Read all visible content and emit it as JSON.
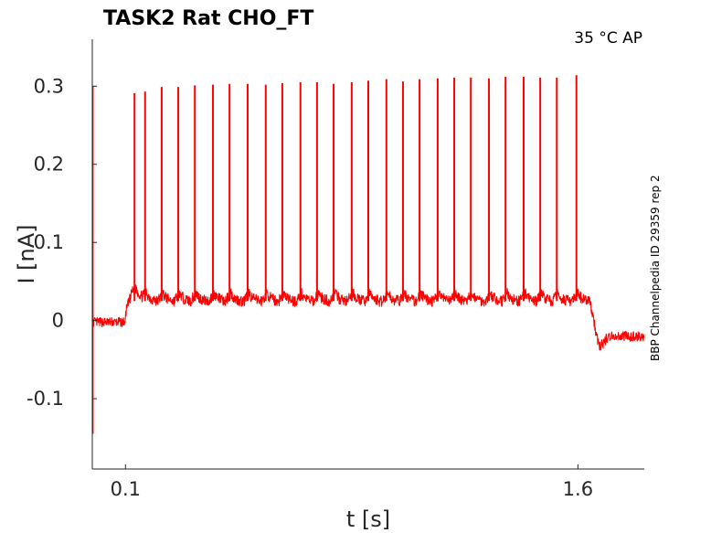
{
  "chart_data": {
    "type": "line",
    "title": "TASK2  Rat  CHO_FT",
    "annotation": "35 °C  AP",
    "side_label": "BBP Channelpedia ID 29359 rep 2",
    "xlabel": "t [s]",
    "ylabel": "I [nA]",
    "xlim": [
      -0.01,
      1.82
    ],
    "ylim": [
      -0.19,
      0.36
    ],
    "xticks": [
      {
        "value": 0.1,
        "label": "0.1"
      },
      {
        "value": 1.6,
        "label": "1.6"
      }
    ],
    "yticks": [
      {
        "value": 0.3,
        "label": "0.3"
      },
      {
        "value": 0.2,
        "label": "0.2"
      },
      {
        "value": 0.1,
        "label": "0.1"
      },
      {
        "value": 0,
        "label": "0"
      },
      {
        "value": -0.1,
        "label": "-0.1"
      }
    ],
    "grid": false,
    "series": [
      {
        "color": "#ff0000",
        "baseline": {
          "pre": {
            "t": [
              -0.01,
              0.1
            ],
            "value": -0.002
          },
          "during": {
            "t": [
              0.1,
              1.64
            ],
            "value": 0.025
          },
          "post": {
            "t": [
              1.64,
              1.82
            ],
            "value": -0.02
          }
        },
        "onset_transient": {
          "t": -0.008,
          "max": 0.3,
          "min": -0.145
        },
        "spikes": [
          {
            "t": 0.13,
            "peak": 0.291
          },
          {
            "t": 0.165,
            "peak": 0.293
          },
          {
            "t": 0.22,
            "peak": 0.299
          },
          {
            "t": 0.275,
            "peak": 0.299
          },
          {
            "t": 0.33,
            "peak": 0.301
          },
          {
            "t": 0.39,
            "peak": 0.302
          },
          {
            "t": 0.445,
            "peak": 0.303
          },
          {
            "t": 0.505,
            "peak": 0.303
          },
          {
            "t": 0.565,
            "peak": 0.302
          },
          {
            "t": 0.62,
            "peak": 0.304
          },
          {
            "t": 0.68,
            "peak": 0.305
          },
          {
            "t": 0.735,
            "peak": 0.305
          },
          {
            "t": 0.79,
            "peak": 0.303
          },
          {
            "t": 0.85,
            "peak": 0.305
          },
          {
            "t": 0.905,
            "peak": 0.307
          },
          {
            "t": 0.965,
            "peak": 0.309
          },
          {
            "t": 1.02,
            "peak": 0.306
          },
          {
            "t": 1.075,
            "peak": 0.309
          },
          {
            "t": 1.135,
            "peak": 0.31
          },
          {
            "t": 1.19,
            "peak": 0.311
          },
          {
            "t": 1.245,
            "peak": 0.311
          },
          {
            "t": 1.305,
            "peak": 0.31
          },
          {
            "t": 1.36,
            "peak": 0.312
          },
          {
            "t": 1.42,
            "peak": 0.312
          },
          {
            "t": 1.475,
            "peak": 0.311
          },
          {
            "t": 1.53,
            "peak": 0.311
          },
          {
            "t": 1.595,
            "peak": 0.314
          }
        ]
      }
    ]
  }
}
